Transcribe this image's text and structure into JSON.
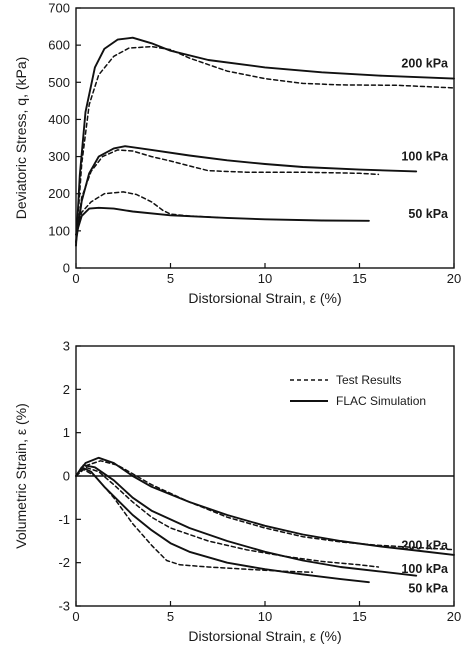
{
  "chart_data": [
    {
      "type": "line",
      "ylabel": "Deviatoric Stress, q, (kPa)",
      "xlabel": "Distorsional Strain, ε (%)",
      "xlim": [
        0,
        20
      ],
      "ylim": [
        0,
        700
      ],
      "xticks": [
        0,
        5,
        10,
        15,
        20
      ],
      "yticks": [
        0,
        100,
        200,
        300,
        400,
        500,
        600,
        700
      ],
      "curve_labels": [
        {
          "text": "200 kPa",
          "x": 20.0,
          "y": 550
        },
        {
          "text": "100 kPa",
          "x": 20.0,
          "y": 300
        },
        {
          "text": "50 kPa",
          "x": 20.0,
          "y": 145
        }
      ],
      "series": [
        {
          "style": "solid",
          "group": "200 kPa",
          "points": [
            [
              0,
              60
            ],
            [
              0.2,
              250
            ],
            [
              0.5,
              420
            ],
            [
              1.0,
              540
            ],
            [
              1.5,
              590
            ],
            [
              2.2,
              615
            ],
            [
              3,
              620
            ],
            [
              4,
              605
            ],
            [
              5,
              585
            ],
            [
              7,
              560
            ],
            [
              10,
              540
            ],
            [
              13,
              527
            ],
            [
              16,
              518
            ],
            [
              20,
              510
            ]
          ]
        },
        {
          "style": "dashed",
          "group": "200 kPa",
          "points": [
            [
              0,
              60
            ],
            [
              0.3,
              280
            ],
            [
              0.7,
              440
            ],
            [
              1.2,
              520
            ],
            [
              2,
              570
            ],
            [
              2.8,
              592
            ],
            [
              4,
              596
            ],
            [
              5,
              588
            ],
            [
              6,
              565
            ],
            [
              8,
              530
            ],
            [
              10,
              510
            ],
            [
              12,
              497
            ],
            [
              14,
              493
            ],
            [
              17,
              492
            ],
            [
              20,
              485
            ]
          ]
        },
        {
          "style": "solid",
          "group": "100 kPa",
          "points": [
            [
              0,
              70
            ],
            [
              0.3,
              180
            ],
            [
              0.7,
              255
            ],
            [
              1.2,
              300
            ],
            [
              2,
              322
            ],
            [
              2.6,
              328
            ],
            [
              4,
              318
            ],
            [
              6,
              303
            ],
            [
              8,
              290
            ],
            [
              10,
              280
            ],
            [
              12,
              272
            ],
            [
              15,
              265
            ],
            [
              18,
              260
            ]
          ]
        },
        {
          "style": "dashed",
          "group": "100 kPa",
          "points": [
            [
              0,
              70
            ],
            [
              0.3,
              190
            ],
            [
              0.8,
              260
            ],
            [
              1.4,
              300
            ],
            [
              2.2,
              318
            ],
            [
              3,
              315
            ],
            [
              4,
              300
            ],
            [
              5,
              288
            ],
            [
              6,
              275
            ],
            [
              7,
              262
            ],
            [
              9,
              258
            ],
            [
              12,
              258
            ],
            [
              15,
              255
            ],
            [
              16,
              252
            ]
          ]
        },
        {
          "style": "solid",
          "group": "50 kPa",
          "points": [
            [
              0,
              90
            ],
            [
              0.3,
              140
            ],
            [
              0.7,
              160
            ],
            [
              1.2,
              162
            ],
            [
              2,
              160
            ],
            [
              3,
              152
            ],
            [
              5,
              142
            ],
            [
              8,
              135
            ],
            [
              10,
              131
            ],
            [
              13,
              128
            ],
            [
              15.5,
              127
            ]
          ]
        },
        {
          "style": "dashed",
          "group": "50 kPa",
          "points": [
            [
              0,
              90
            ],
            [
              0.3,
              150
            ],
            [
              0.8,
              178
            ],
            [
              1.5,
              200
            ],
            [
              2.5,
              205
            ],
            [
              3.2,
              198
            ],
            [
              4,
              178
            ],
            [
              4.6,
              155
            ],
            [
              5,
              145
            ],
            [
              6,
              140
            ],
            [
              7.5,
              136
            ]
          ]
        }
      ]
    },
    {
      "type": "line",
      "ylabel": "Volumetric Strain, ε (%)",
      "xlabel": "Distorsional Strain, ε (%)",
      "xlim": [
        0,
        20
      ],
      "ylim": [
        -3,
        3
      ],
      "xticks": [
        0,
        5,
        10,
        15,
        20
      ],
      "yticks": [
        -3,
        -2,
        -1,
        0,
        1,
        2,
        3
      ],
      "reference_line_y": 0,
      "legend": {
        "position": "top-right",
        "entries": [
          {
            "label": "Test Results",
            "style": "dashed"
          },
          {
            "label": "FLAC Simulation",
            "style": "solid"
          }
        ]
      },
      "curve_labels": [
        {
          "text": "200 kPa",
          "x": 20.0,
          "y": -1.6
        },
        {
          "text": "100 kPa",
          "x": 20.0,
          "y": -2.15
        },
        {
          "text": "50 kPa",
          "x": 20.0,
          "y": -2.6
        }
      ],
      "series": [
        {
          "style": "solid",
          "group": "200 kPa",
          "points": [
            [
              0,
              0
            ],
            [
              0.5,
              0.3
            ],
            [
              1.2,
              0.42
            ],
            [
              2,
              0.3
            ],
            [
              3,
              0
            ],
            [
              4,
              -0.25
            ],
            [
              6,
              -0.6
            ],
            [
              8,
              -0.9
            ],
            [
              10,
              -1.15
            ],
            [
              12,
              -1.35
            ],
            [
              14,
              -1.5
            ],
            [
              16,
              -1.62
            ],
            [
              18,
              -1.72
            ],
            [
              20,
              -1.82
            ]
          ]
        },
        {
          "style": "dashed",
          "group": "200 kPa",
          "points": [
            [
              0,
              0
            ],
            [
              0.6,
              0.25
            ],
            [
              1.3,
              0.35
            ],
            [
              2.2,
              0.25
            ],
            [
              3,
              0.05
            ],
            [
              4,
              -0.2
            ],
            [
              6,
              -0.6
            ],
            [
              8,
              -0.95
            ],
            [
              10,
              -1.2
            ],
            [
              12,
              -1.4
            ],
            [
              14,
              -1.52
            ],
            [
              16,
              -1.6
            ],
            [
              18,
              -1.65
            ],
            [
              20,
              -1.7
            ]
          ]
        },
        {
          "style": "solid",
          "group": "100 kPa",
          "points": [
            [
              0,
              0
            ],
            [
              0.4,
              0.25
            ],
            [
              1,
              0.2
            ],
            [
              2,
              -0.1
            ],
            [
              3,
              -0.5
            ],
            [
              4,
              -0.8
            ],
            [
              6,
              -1.2
            ],
            [
              8,
              -1.5
            ],
            [
              10,
              -1.75
            ],
            [
              12,
              -1.95
            ],
            [
              14,
              -2.1
            ],
            [
              16,
              -2.2
            ],
            [
              18,
              -2.3
            ]
          ]
        },
        {
          "style": "dashed",
          "group": "100 kPa",
          "points": [
            [
              0,
              0
            ],
            [
              0.5,
              0.2
            ],
            [
              1.2,
              0.1
            ],
            [
              2,
              -0.2
            ],
            [
              3,
              -0.6
            ],
            [
              4,
              -0.95
            ],
            [
              5,
              -1.2
            ],
            [
              7,
              -1.5
            ],
            [
              9,
              -1.7
            ],
            [
              11,
              -1.85
            ],
            [
              13,
              -1.97
            ],
            [
              15,
              -2.05
            ],
            [
              16,
              -2.1
            ]
          ]
        },
        {
          "style": "solid",
          "group": "50 kPa",
          "points": [
            [
              0,
              0
            ],
            [
              0.3,
              0.2
            ],
            [
              0.8,
              0.1
            ],
            [
              1.5,
              -0.25
            ],
            [
              3,
              -0.9
            ],
            [
              4,
              -1.25
            ],
            [
              5,
              -1.55
            ],
            [
              6,
              -1.75
            ],
            [
              8,
              -2.0
            ],
            [
              10,
              -2.15
            ],
            [
              12,
              -2.27
            ],
            [
              14,
              -2.38
            ],
            [
              15.5,
              -2.45
            ]
          ]
        },
        {
          "style": "dashed",
          "group": "50 kPa",
          "points": [
            [
              0,
              0
            ],
            [
              0.4,
              0.15
            ],
            [
              1,
              0
            ],
            [
              2,
              -0.5
            ],
            [
              3,
              -1.1
            ],
            [
              4,
              -1.6
            ],
            [
              4.8,
              -1.95
            ],
            [
              5.5,
              -2.05
            ],
            [
              7,
              -2.1
            ],
            [
              9,
              -2.15
            ],
            [
              11,
              -2.2
            ],
            [
              12.5,
              -2.22
            ]
          ]
        }
      ]
    }
  ]
}
